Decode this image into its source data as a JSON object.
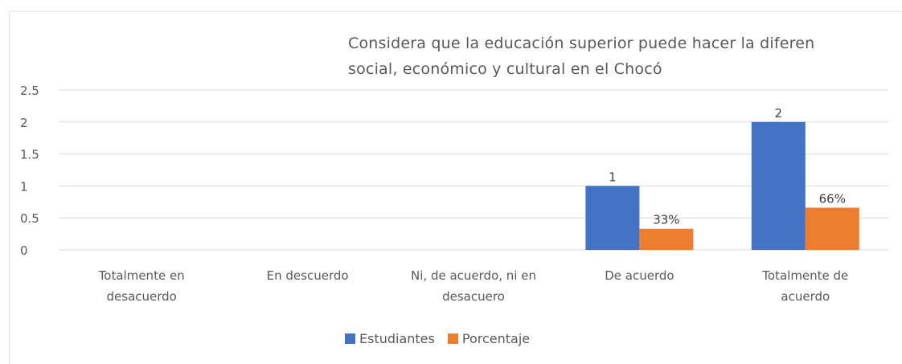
{
  "chart_data": {
    "type": "bar",
    "title_lines": [
      "Considera que la educación superior puede hacer la diferen",
      "social, económico y cultural en el Chocó"
    ],
    "categories": [
      [
        "Totalmente en",
        "desacuerdo"
      ],
      [
        "En descuerdo"
      ],
      [
        "Ni, de acuerdo, ni en",
        "desacuero"
      ],
      [
        "De acuerdo"
      ],
      [
        "Totalmente de",
        "acuerdo"
      ]
    ],
    "series": [
      {
        "name": "Estudiantes",
        "color": "#4472C4",
        "values": [
          null,
          null,
          null,
          1,
          2
        ],
        "labels": [
          null,
          null,
          null,
          "1",
          "2"
        ]
      },
      {
        "name": "Porcentaje",
        "color": "#ED7D31",
        "values": [
          null,
          null,
          null,
          0.33,
          0.66
        ],
        "labels": [
          null,
          null,
          null,
          "33%",
          "66%"
        ]
      }
    ],
    "yticks": [
      "0",
      "0.5",
      "1",
      "1.5",
      "2",
      "2.5"
    ],
    "ylim": [
      0,
      2.5
    ],
    "grid": true,
    "legend_position": "bottom"
  }
}
